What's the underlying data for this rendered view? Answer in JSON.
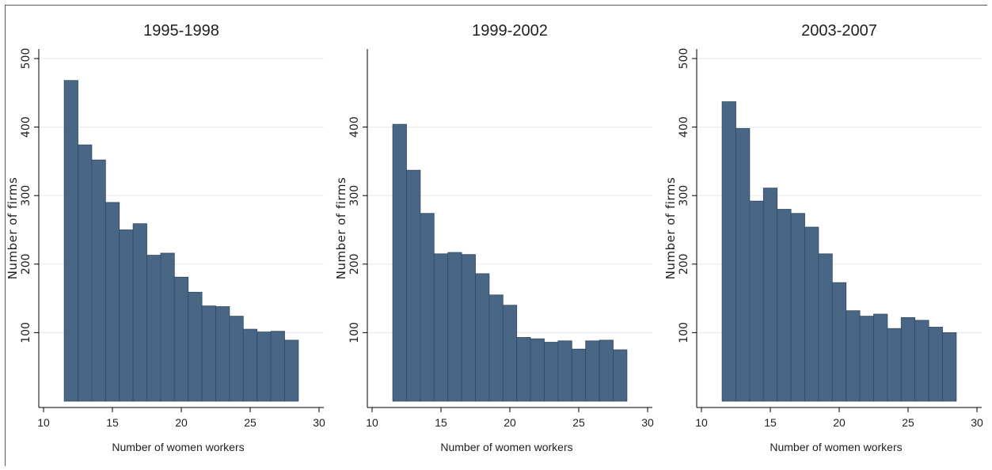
{
  "chart_data": [
    {
      "type": "bar",
      "title": "1995-1998",
      "xlabel": "Number of women workers",
      "ylabel": "Number of firms",
      "xlim": [
        10,
        30
      ],
      "ylim": [
        0,
        500
      ],
      "xticks": [
        "10",
        "15",
        "20",
        "25",
        "30"
      ],
      "yticks": [
        "100",
        "200",
        "300",
        "400",
        "500"
      ],
      "categories": [
        "12",
        "13",
        "14",
        "15",
        "16",
        "17",
        "18",
        "19",
        "20",
        "21",
        "22",
        "23",
        "24",
        "25",
        "26",
        "27",
        "28"
      ],
      "values": [
        468,
        374,
        352,
        290,
        250,
        259,
        213,
        216,
        181,
        159,
        139,
        138,
        124,
        105,
        101,
        102,
        89
      ],
      "grid": true,
      "bar_color": "#4a6685"
    },
    {
      "type": "bar",
      "title": "1999-2002",
      "xlabel": "Number of women workers",
      "ylabel": "Number of firms",
      "xlim": [
        10,
        30
      ],
      "ylim": [
        0,
        500
      ],
      "xticks": [
        "10",
        "15",
        "20",
        "25",
        "30"
      ],
      "yticks": [
        "100",
        "200",
        "300",
        "400"
      ],
      "categories": [
        "12",
        "13",
        "14",
        "15",
        "16",
        "17",
        "18",
        "19",
        "20",
        "21",
        "22",
        "23",
        "24",
        "25",
        "26",
        "27",
        "28"
      ],
      "values": [
        404,
        337,
        274,
        215,
        217,
        214,
        186,
        155,
        140,
        93,
        91,
        86,
        88,
        76,
        88,
        89,
        75
      ],
      "grid": true,
      "bar_color": "#4a6685"
    },
    {
      "type": "bar",
      "title": "2003-2007",
      "xlabel": "Number of women workers",
      "ylabel": "Number of firms",
      "xlim": [
        10,
        30
      ],
      "ylim": [
        0,
        500
      ],
      "xticks": [
        "10",
        "15",
        "20",
        "25",
        "30"
      ],
      "yticks": [
        "100",
        "200",
        "300",
        "400",
        "500"
      ],
      "categories": [
        "12",
        "13",
        "14",
        "15",
        "16",
        "17",
        "18",
        "19",
        "20",
        "21",
        "22",
        "23",
        "24",
        "25",
        "26",
        "27",
        "28"
      ],
      "values": [
        437,
        398,
        292,
        311,
        280,
        274,
        254,
        215,
        173,
        132,
        124,
        127,
        106,
        122,
        118,
        108,
        100
      ],
      "grid": true,
      "bar_color": "#4a6685"
    }
  ]
}
